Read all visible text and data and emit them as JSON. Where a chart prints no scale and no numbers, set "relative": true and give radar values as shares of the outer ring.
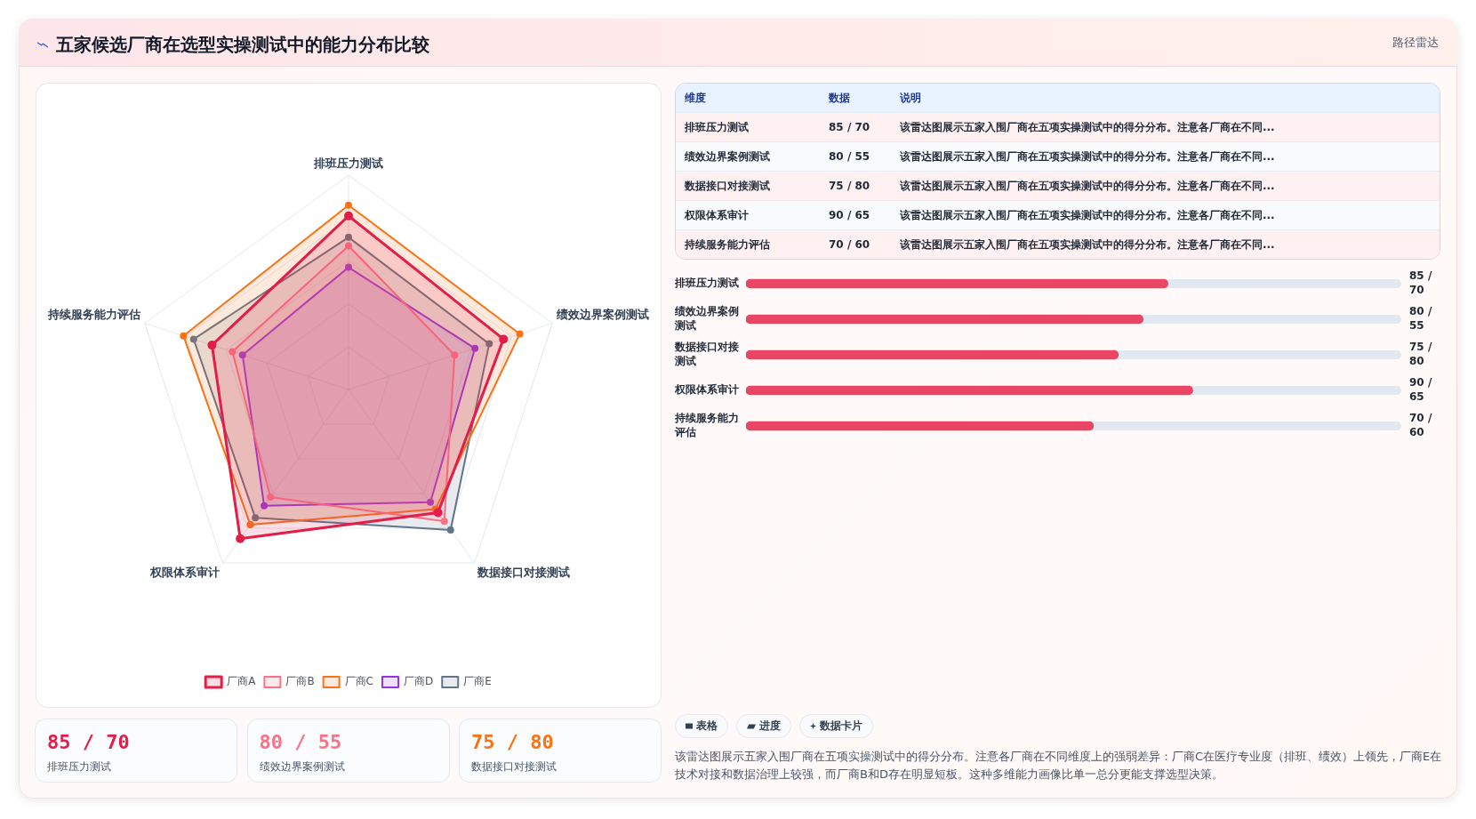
{
  "chart_data": [
    {
      "type": "radar",
      "title": "五家候选厂商在选型实操测试中的能力分布比较",
      "categories": [
        "排班压力测试",
        "绩效边界案例测试",
        "数据接口对接测试",
        "权限体系审计",
        "持续服务能力评估"
      ],
      "series": [
        {
          "name": "厂商A",
          "color": "#e11d48",
          "values": [
            0.81,
            0.76,
            0.71,
            0.86,
            0.67
          ]
        },
        {
          "name": "厂商B",
          "color": "#fb7185",
          "values": [
            0.67,
            0.52,
            0.76,
            0.62,
            0.57
          ]
        },
        {
          "name": "厂商C",
          "color": "#f97316",
          "values": [
            0.86,
            0.84,
            0.69,
            0.78,
            0.81
          ]
        },
        {
          "name": "厂商D",
          "color": "#9333ea",
          "values": [
            0.57,
            0.62,
            0.65,
            0.67,
            0.52
          ]
        },
        {
          "name": "厂商E",
          "color": "#64748b",
          "values": [
            0.71,
            0.69,
            0.81,
            0.74,
            0.76
          ]
        }
      ],
      "relative": true,
      "tick_labels": "x",
      "grid": true,
      "legend": "bottom",
      "marker": "circle"
    },
    {
      "type": "other",
      "title": "路径雷达",
      "annotations": [
        "维度",
        "数据",
        "说明",
        "排班压力测试",
        "85 / 70",
        "该雷达图展示五家入围厂商在五项实操测试中的得分分布。注意各厂商在不同...",
        "绩效边界案例测试",
        "80 / 55",
        "该雷达图展示五家入围厂商在五项实操测试中的得分分布。注意各厂商在不同...",
        "数据接口对接测试",
        "75 / 80",
        "该雷达图展示五家入围厂商在五项实操测试中的得分分布。注意各厂商在不同...",
        "权限体系审计",
        "90 / 65",
        "该雷达图展示五家入围厂商在五项实操测试中的得分分布。注意各厂商在不同...",
        "持续服务能力评估",
        "70 / 60",
        "该雷达图展示五家入围厂商在五项实操测试中的得分分布。注意各厂商在不同..."
      ]
    },
    {
      "type": "bar",
      "orientation": "horizontal",
      "categories": [
        "排班压力测试",
        "绩效边界案例测试",
        "数据接口对接测试",
        "权限体系审计",
        "持续服务能力评估"
      ],
      "values": [
        85,
        80,
        75,
        90,
        70
      ],
      "value_labels": [
        "85 / 70",
        "80 / 55",
        "75 / 80",
        "90 / 65",
        "70 / 60"
      ],
      "color": "#eb4565",
      "xlim": [
        0,
        132
      ],
      "tick_labels": "y"
    },
    {
      "type": "other",
      "annotations": [
        "85 / 70",
        "排班压力测试",
        "80 / 55",
        "绩效边界案例测试",
        "75 / 80",
        "数据接口对接测试"
      ],
      "colors": [
        "#e11d48",
        "#fb7185",
        "#f97316"
      ]
    },
    {
      "type": "other",
      "annotations": [
        "表格",
        "进度",
        "数据卡片",
        "该雷达图展示五家入围厂商在五项实操测试中的得分分布。注意各厂商在不同维度上的强弱差异：厂商C在医疗专业度（排班、绩效）上领先，厂商E在技术对接和数据治理上较强，而厂商B和D存在明显短板。这种多维能力画像比单一总分更能支撑选型决策。"
      ]
    }
  ]
}
